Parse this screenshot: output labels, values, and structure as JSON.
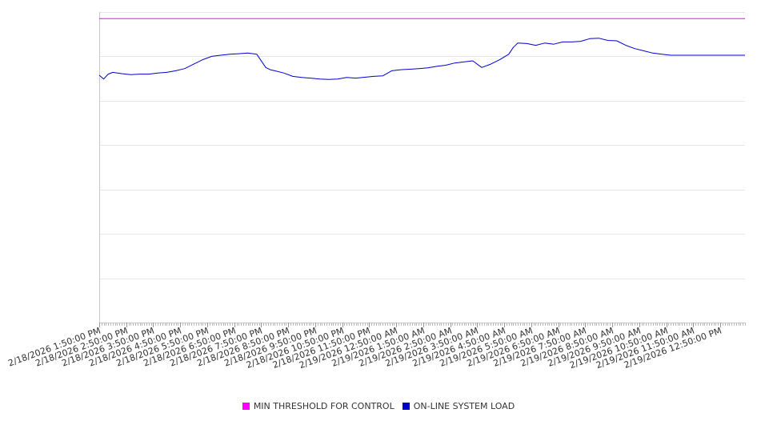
{
  "chart_data": {
    "type": "line",
    "title": "",
    "xlabel": "",
    "ylabel": "",
    "y_tick_labels_shown": false,
    "x_ticks": [
      "2/18/2026 1:50:00 PM",
      "2/18/2026 2:50:00 PM",
      "2/18/2026 3:50:00 PM",
      "2/18/2026 4:50:00 PM",
      "2/18/2026 5:50:00 PM",
      "2/18/2026 6:50:00 PM",
      "2/18/2026 7:50:00 PM",
      "2/18/2026 8:50:00 PM",
      "2/18/2026 9:50:00 PM",
      "2/18/2026 10:50:00 PM",
      "2/18/2026 11:50:00 PM",
      "2/19/2026 12:50:00 AM",
      "2/19/2026 1:50:00 AM",
      "2/19/2026 2:50:00 AM",
      "2/19/2026 3:50:00 AM",
      "2/19/2026 4:50:00 AM",
      "2/19/2026 5:50:00 AM",
      "2/19/2026 6:50:00 AM",
      "2/19/2026 7:50:00 AM",
      "2/19/2026 8:50:00 AM",
      "2/19/2026 9:50:00 AM",
      "2/19/2026 10:50:00 AM",
      "2/19/2026 11:50:00 AM",
      "2/19/2026 12:50:00 PM"
    ],
    "x_range": [
      "2/18/2026 1:50:00 PM",
      "2/19/2026 1:45:00 PM"
    ],
    "minor_ticks_per_major": 12,
    "ylim": [
      0,
      1400
    ],
    "y_gridlines": [
      0,
      200,
      400,
      600,
      800,
      1000,
      1200,
      1400
    ],
    "grid": "horizontal",
    "legend_position": "bottom-center",
    "series": [
      {
        "name": "MIN THRESHOLD FOR CONTROL",
        "color": "#ff00ff",
        "x": [
          "2/18/2026 1:50:00 PM",
          "2/19/2026 1:45:00 PM"
        ],
        "values": [
          1370,
          1370
        ]
      },
      {
        "name": "ON-LINE SYSTEM LOAD",
        "color": "#0000cc",
        "x": [
          "2/18/2026 1:50:00 PM",
          "2/18/2026 2:00:00 PM",
          "2/18/2026 2:10:00 PM",
          "2/18/2026 2:20:00 PM",
          "2/18/2026 2:40:00 PM",
          "2/18/2026 3:00:00 PM",
          "2/18/2026 3:20:00 PM",
          "2/18/2026 3:40:00 PM",
          "2/18/2026 4:00:00 PM",
          "2/18/2026 4:20:00 PM",
          "2/18/2026 4:40:00 PM",
          "2/18/2026 5:00:00 PM",
          "2/18/2026 5:20:00 PM",
          "2/18/2026 5:40:00 PM",
          "2/18/2026 6:00:00 PM",
          "2/18/2026 6:20:00 PM",
          "2/18/2026 6:40:00 PM",
          "2/18/2026 7:00:00 PM",
          "2/18/2026 7:20:00 PM",
          "2/18/2026 7:40:00 PM",
          "2/18/2026 8:00:00 PM",
          "2/18/2026 8:10:00 PM",
          "2/18/2026 8:20:00 PM",
          "2/18/2026 8:40:00 PM",
          "2/18/2026 9:00:00 PM",
          "2/18/2026 9:20:00 PM",
          "2/18/2026 9:40:00 PM",
          "2/18/2026 10:00:00 PM",
          "2/18/2026 10:20:00 PM",
          "2/18/2026 10:40:00 PM",
          "2/18/2026 11:00:00 PM",
          "2/18/2026 11:20:00 PM",
          "2/18/2026 11:40:00 PM",
          "2/19/2026 12:00:00 AM",
          "2/19/2026 12:20:00 AM",
          "2/19/2026 12:40:00 AM",
          "2/19/2026 1:00:00 AM",
          "2/19/2026 1:20:00 AM",
          "2/19/2026 1:40:00 AM",
          "2/19/2026 2:00:00 AM",
          "2/19/2026 2:20:00 AM",
          "2/19/2026 2:40:00 AM",
          "2/19/2026 3:00:00 AM",
          "2/19/2026 3:20:00 AM",
          "2/19/2026 3:40:00 AM",
          "2/19/2026 4:00:00 AM",
          "2/19/2026 4:20:00 AM",
          "2/19/2026 4:40:00 AM",
          "2/19/2026 5:00:00 AM",
          "2/19/2026 5:10:00 AM",
          "2/19/2026 5:20:00 AM",
          "2/19/2026 5:40:00 AM",
          "2/19/2026 6:00:00 AM",
          "2/19/2026 6:20:00 AM",
          "2/19/2026 6:40:00 AM",
          "2/19/2026 7:00:00 AM",
          "2/19/2026 7:20:00 AM",
          "2/19/2026 7:40:00 AM",
          "2/19/2026 8:00:00 AM",
          "2/19/2026 8:20:00 AM",
          "2/19/2026 8:40:00 AM",
          "2/19/2026 9:00:00 AM",
          "2/19/2026 9:20:00 AM",
          "2/19/2026 9:40:00 AM",
          "2/19/2026 10:00:00 AM",
          "2/19/2026 10:20:00 AM",
          "2/19/2026 10:40:00 AM",
          "2/19/2026 11:00:00 AM",
          "2/19/2026 11:20:00 AM",
          "2/19/2026 11:40:00 AM",
          "2/19/2026 12:00:00 PM",
          "2/19/2026 12:20:00 PM",
          "2/19/2026 12:40:00 PM",
          "2/19/2026 1:00:00 PM",
          "2/19/2026 1:20:00 PM",
          "2/19/2026 1:45:00 PM"
        ],
        "values": [
          1115,
          1098,
          1120,
          1128,
          1122,
          1118,
          1120,
          1120,
          1125,
          1128,
          1135,
          1145,
          1165,
          1185,
          1200,
          1205,
          1210,
          1212,
          1215,
          1210,
          1150,
          1140,
          1135,
          1125,
          1110,
          1105,
          1102,
          1098,
          1096,
          1098,
          1105,
          1102,
          1106,
          1110,
          1112,
          1135,
          1140,
          1142,
          1145,
          1148,
          1155,
          1160,
          1170,
          1175,
          1180,
          1150,
          1165,
          1185,
          1210,
          1240,
          1260,
          1258,
          1250,
          1260,
          1255,
          1265,
          1265,
          1268,
          1280,
          1282,
          1272,
          1270,
          1250,
          1235,
          1225,
          1215,
          1210,
          1205,
          1205,
          1205,
          1205,
          1205,
          1205,
          1205,
          1205,
          1205
        ]
      }
    ]
  }
}
